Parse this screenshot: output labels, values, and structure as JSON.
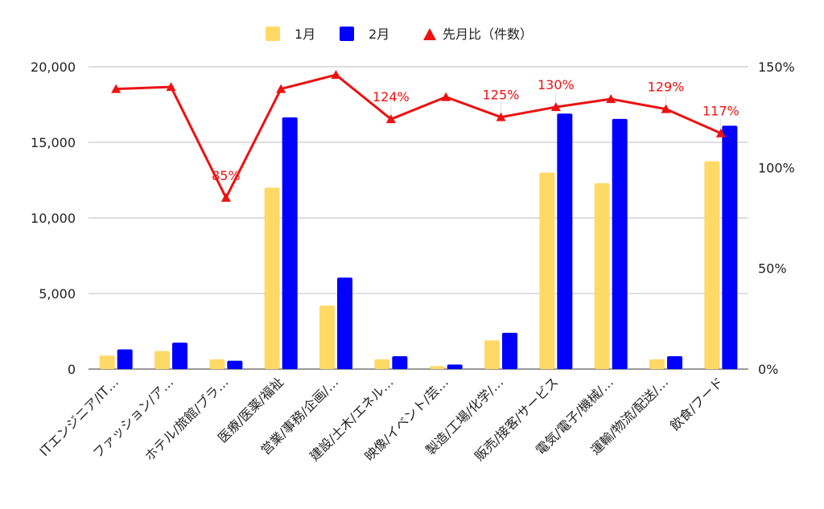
{
  "chart_data": {
    "type": "bar",
    "categories": [
      "ITエンジニア/IT…",
      "ファッション/ア…",
      "ホテル/旅館/ブラ…",
      "医療/医薬/福祉",
      "営業/事務/企画/…",
      "建設/土木/エネル…",
      "映像/イベント/芸…",
      "製造/工場/化学/…",
      "販売/接客/サービス",
      "電気/電子/機械/…",
      "運輸/物流/配送/…",
      "飲食/フード"
    ],
    "series": [
      {
        "name": "1月",
        "type": "bar",
        "axis": "left",
        "color": "#ffd966",
        "values": [
          900,
          1200,
          650,
          12000,
          4200,
          650,
          200,
          1900,
          13000,
          12300,
          650,
          13750
        ]
      },
      {
        "name": "2月",
        "type": "bar",
        "axis": "left",
        "color": "#0000ff",
        "values": [
          1300,
          1750,
          550,
          16650,
          6050,
          850,
          300,
          2400,
          16900,
          16550,
          850,
          16100
        ]
      },
      {
        "name": "先月比（件数）",
        "type": "line",
        "axis": "right",
        "color": "#ee1111",
        "values": [
          139,
          140,
          85,
          139,
          146,
          124,
          135,
          125,
          130,
          134,
          129,
          117
        ],
        "labels": [
          "",
          "",
          "85%",
          "",
          "",
          "124%",
          "",
          "125%",
          "130%",
          "",
          "129%",
          "117%"
        ]
      }
    ],
    "y_left": {
      "min": 0,
      "max": 20000,
      "ticks": [
        "0",
        "5,000",
        "10,000",
        "15,000",
        "20,000"
      ]
    },
    "y_right": {
      "min": 0,
      "max": 150,
      "ticks": [
        "0%",
        "50%",
        "100%",
        "150%"
      ]
    },
    "legend": "top",
    "grid": true
  }
}
